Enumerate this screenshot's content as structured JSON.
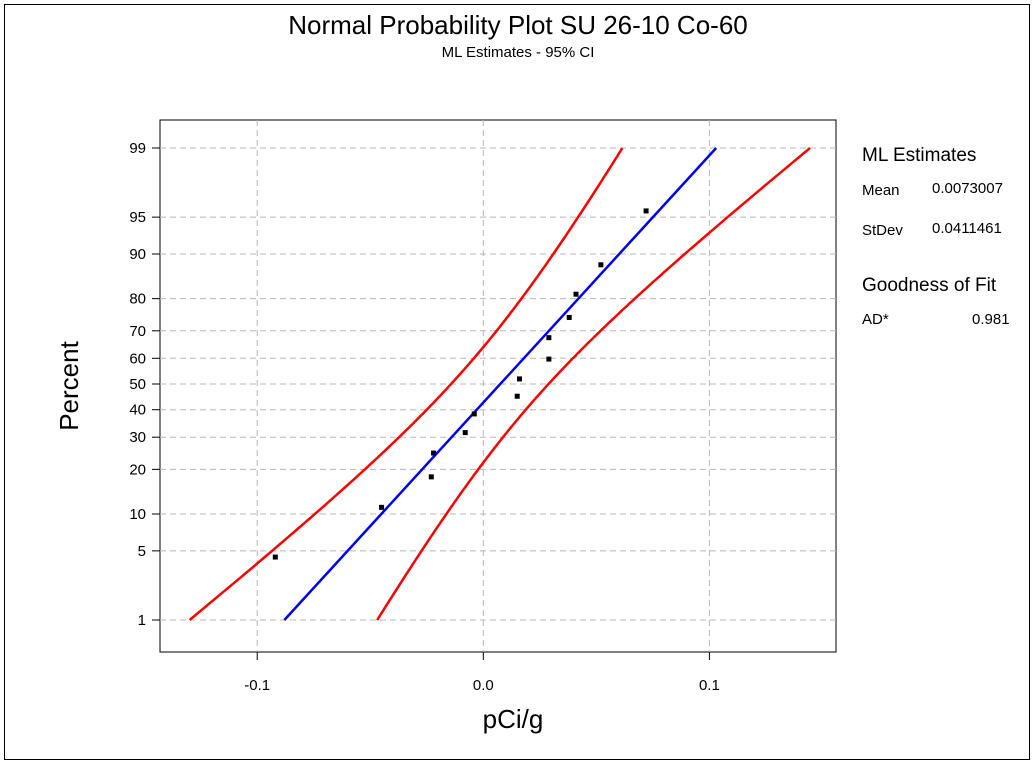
{
  "chart_data": {
    "type": "scatter",
    "title": "Normal Probability Plot SU 26-10 Co-60",
    "subtitle": "ML Estimates - 95% CI",
    "xlabel": "pCi/g",
    "ylabel": "Percent",
    "xlim": [
      -0.143,
      0.156
    ],
    "x_ticks": [
      -0.1,
      0.0,
      0.1
    ],
    "x_tick_labels": [
      "-0.1",
      "0.0",
      "0.1"
    ],
    "y_scale": "normal-probability",
    "ylim_percent": [
      0.5,
      99.5
    ],
    "y_ticks": [
      1,
      5,
      10,
      20,
      30,
      40,
      50,
      60,
      70,
      80,
      90,
      95,
      99
    ],
    "y_tick_labels": [
      "1",
      "5",
      "10",
      "20",
      "30",
      "40",
      "50",
      "60",
      "70",
      "80",
      "90",
      "95",
      "99"
    ],
    "grid": true,
    "fit_line": {
      "color": "#0000ff",
      "x_range": [
        -0.088,
        0.103
      ],
      "y_range_percent": [
        1,
        99
      ]
    },
    "ci_bands": {
      "color": "#ff0000",
      "confidence_percent": 95
    },
    "points": [
      {
        "x": -0.092,
        "p": 4.4
      },
      {
        "x": -0.045,
        "p": 11.2
      },
      {
        "x": -0.023,
        "p": 18.0
      },
      {
        "x": -0.022,
        "p": 24.8
      },
      {
        "x": -0.008,
        "p": 31.6
      },
      {
        "x": -0.004,
        "p": 38.4
      },
      {
        "x": 0.015,
        "p": 45.2
      },
      {
        "x": 0.016,
        "p": 52.0
      },
      {
        "x": 0.029,
        "p": 59.7
      },
      {
        "x": 0.029,
        "p": 67.6
      },
      {
        "x": 0.038,
        "p": 74.4
      },
      {
        "x": 0.041,
        "p": 81.2
      },
      {
        "x": 0.052,
        "p": 88.0
      },
      {
        "x": 0.072,
        "p": 95.6
      }
    ],
    "point_color": "#000000"
  },
  "stats": {
    "ml_header": "ML Estimates",
    "mean_label": "Mean",
    "mean_value": "0.0073007",
    "stdev_label": "StDev",
    "stdev_value": "0.0411461",
    "gof_header": "Goodness of Fit",
    "ad_label": "AD*",
    "ad_value": "0.981"
  }
}
